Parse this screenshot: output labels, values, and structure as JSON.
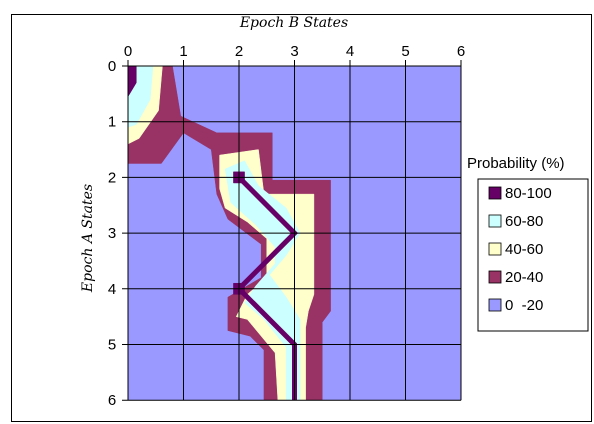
{
  "chart_data": {
    "type": "heatmap",
    "subtype": "contour",
    "title": "",
    "xlabel": "Epoch B States",
    "ylabel": "Epoch A States",
    "x_ticks": [
      "0",
      "1",
      "2",
      "3",
      "4",
      "5",
      "6"
    ],
    "y_ticks": [
      "0",
      "1",
      "2",
      "3",
      "4",
      "5",
      "6"
    ],
    "xlim": [
      0,
      6
    ],
    "ylim": [
      0,
      6
    ],
    "x_axis_position": "top",
    "y_axis_inverted": true,
    "grid": true,
    "background_color": "#9999ff",
    "legend": {
      "title": "Probability (%)",
      "position": "right",
      "entries": [
        {
          "label": "80-100",
          "color": "#660066"
        },
        {
          "label": "60-80",
          "color": "#ccffff"
        },
        {
          "label": "40-60",
          "color": "#ffffcc"
        },
        {
          "label": "20-40",
          "color": "#993366"
        },
        {
          "label": "0  -20",
          "color": "#9999ff"
        }
      ]
    },
    "bands": [
      {
        "range": "20-40",
        "color": "#993366",
        "regions": [
          [
            [
              0,
              0
            ],
            [
              0.8,
              0
            ],
            [
              0.95,
              0.9
            ],
            [
              1.6,
              1.2
            ],
            [
              2.6,
              1.2
            ],
            [
              2.6,
              2.05
            ],
            [
              3.65,
              2.05
            ],
            [
              3.65,
              4.4
            ],
            [
              3.5,
              4.6
            ],
            [
              3.5,
              6
            ],
            [
              2.45,
              6
            ],
            [
              2.45,
              5.1
            ],
            [
              2.2,
              4.85
            ],
            [
              1.8,
              4.75
            ],
            [
              1.8,
              4.15
            ],
            [
              2.4,
              3.8
            ],
            [
              2.4,
              3.2
            ],
            [
              1.8,
              2.75
            ],
            [
              1.6,
              2.3
            ],
            [
              1.5,
              1.5
            ],
            [
              1,
              1.2
            ],
            [
              0.6,
              1.75
            ],
            [
              0,
              1.75
            ]
          ]
        ]
      },
      {
        "range": "40-60",
        "color": "#ffffcc",
        "regions": [
          [
            [
              0,
              0
            ],
            [
              0.62,
              0
            ],
            [
              0.55,
              0.8
            ],
            [
              0.2,
              1.3
            ],
            [
              0,
              1.4
            ]
          ],
          [
            [
              1.65,
              1.6
            ],
            [
              2.35,
              1.5
            ],
            [
              2.45,
              2.3
            ],
            [
              3.35,
              2.3
            ],
            [
              3.35,
              4.1
            ],
            [
              3.25,
              4.4
            ],
            [
              3.2,
              4.7
            ],
            [
              3.2,
              6
            ],
            [
              2.7,
              6
            ],
            [
              2.65,
              5.15
            ],
            [
              2.15,
              4.55
            ],
            [
              1.95,
              4.5
            ],
            [
              2.15,
              4.1
            ],
            [
              2.5,
              3.8
            ],
            [
              2.5,
              3.1
            ],
            [
              2.15,
              2.8
            ],
            [
              1.75,
              2.55
            ],
            [
              1.65,
              2.2
            ]
          ]
        ]
      },
      {
        "range": "60-80",
        "color": "#ccffff",
        "regions": [
          [
            [
              0,
              0
            ],
            [
              0.45,
              0
            ],
            [
              0.4,
              0.6
            ],
            [
              0.15,
              1.05
            ],
            [
              0,
              1.1
            ]
          ],
          [
            [
              1.75,
              1.85
            ],
            [
              2.1,
              1.7
            ],
            [
              2.35,
              2.15
            ],
            [
              2.85,
              2.55
            ],
            [
              3.1,
              3
            ],
            [
              2.85,
              3.4
            ],
            [
              2.55,
              3.75
            ],
            [
              2.85,
              4.15
            ],
            [
              3.1,
              4.55
            ],
            [
              3.1,
              6
            ],
            [
              2.85,
              6
            ],
            [
              2.85,
              5.05
            ],
            [
              2.45,
              4.55
            ],
            [
              2.1,
              4.25
            ],
            [
              2.3,
              3.95
            ],
            [
              2.65,
              3.55
            ],
            [
              2.65,
              3.25
            ],
            [
              2.3,
              2.85
            ],
            [
              1.85,
              2.45
            ]
          ]
        ]
      },
      {
        "range": "80-100",
        "color": "#660066",
        "regions": [
          [
            [
              0,
              0
            ],
            [
              0.15,
              0
            ],
            [
              0.15,
              0.3
            ],
            [
              0,
              0.55
            ]
          ],
          [
            [
              1.9,
              1.9
            ],
            [
              2.1,
              1.9
            ],
            [
              2.1,
              2.1
            ],
            [
              1.9,
              2.1
            ]
          ],
          [
            [
              1.9,
              3.9
            ],
            [
              2.1,
              3.9
            ],
            [
              2.1,
              4.1
            ],
            [
              1.9,
              4.1
            ]
          ]
        ],
        "paths": [
          [
            [
              2,
              2
            ],
            [
              3,
              3
            ],
            [
              2,
              4
            ],
            [
              3,
              5
            ],
            [
              3,
              6
            ]
          ]
        ]
      }
    ]
  }
}
